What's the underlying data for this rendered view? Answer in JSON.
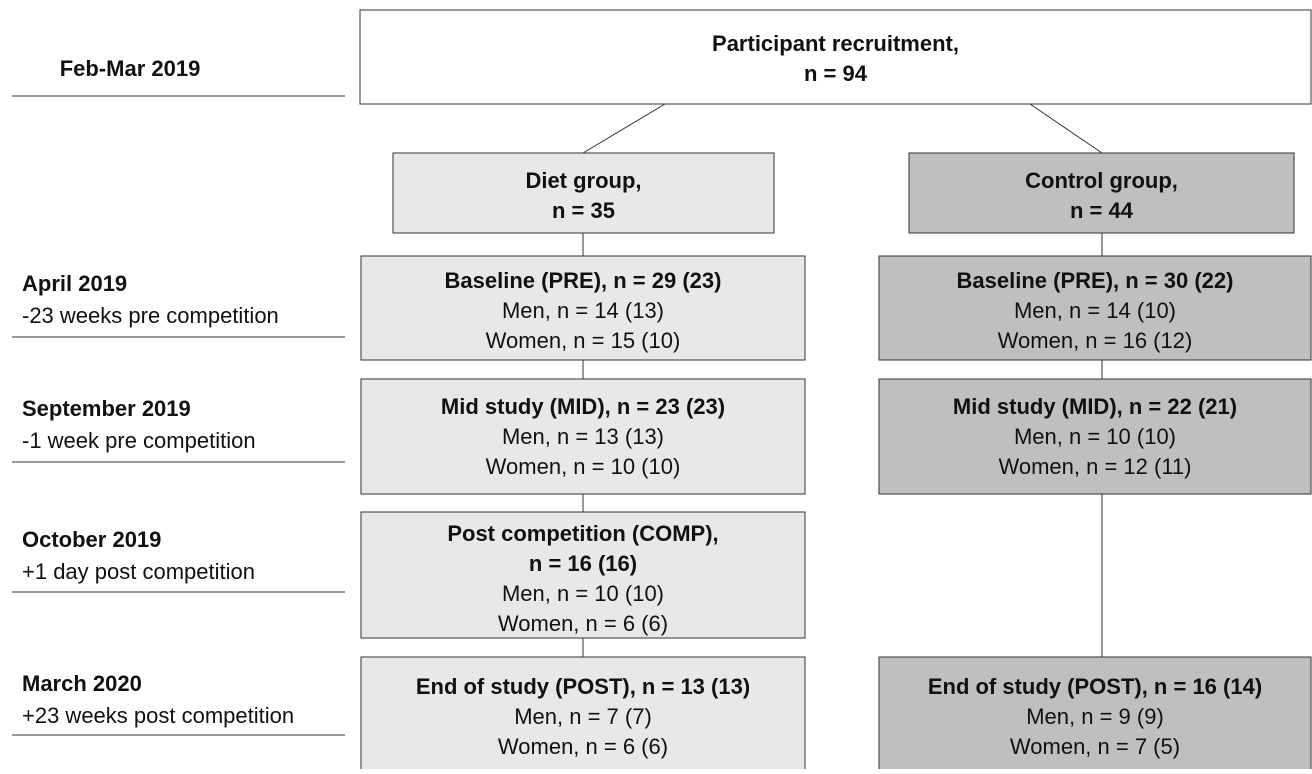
{
  "timeline": [
    {
      "label": "Feb-Mar 2019"
    },
    {
      "label": "April 2019",
      "detail": "-23 weeks pre competition"
    },
    {
      "label": "September 2019",
      "detail": "-1 week pre competition"
    },
    {
      "label": "October 2019",
      "detail": "+1 day post competition"
    },
    {
      "label": "March 2020",
      "detail": "+23 weeks post competition"
    }
  ],
  "recruitment": {
    "heading": [
      "Participant recruitment,",
      "n = 94"
    ]
  },
  "groups": [
    {
      "heading": [
        "Diet group,",
        "n = 35"
      ],
      "color": "#e8e8e8",
      "stages": [
        {
          "heading": [
            "Baseline (PRE), n = 29 (23)"
          ],
          "details": [
            "Men, n = 14 (13)",
            "Women, n = 15 (10)"
          ]
        },
        {
          "heading": [
            "Mid study (MID), n = 23 (23)"
          ],
          "details": [
            "Men, n = 13 (13)",
            "Women, n = 10 (10)"
          ]
        },
        {
          "heading": [
            "Post competition (COMP),",
            "n = 16 (16)"
          ],
          "details": [
            "Men, n = 10 (10)",
            "Women, n = 6 (6)"
          ]
        },
        {
          "heading": [
            "End of study (POST), n = 13 (13)"
          ],
          "details": [
            "Men, n = 7 (7)",
            "Women, n = 6 (6)"
          ]
        }
      ]
    },
    {
      "heading": [
        "Control group,",
        "n = 44"
      ],
      "color": "#bfbfbf",
      "stages": [
        {
          "heading": [
            "Baseline (PRE), n = 30 (22)"
          ],
          "details": [
            "Men, n = 14 (10)",
            "Women, n = 16 (12)"
          ]
        },
        {
          "heading": [
            "Mid study (MID), n = 22 (21)"
          ],
          "details": [
            "Men, n = 10 (10)",
            "Women, n = 12 (11)"
          ]
        },
        {
          "heading": [
            "End of study (POST), n = 16 (14)"
          ],
          "details": [
            "Men, n = 9 (9)",
            "Women, n = 7 (5)"
          ]
        }
      ]
    }
  ]
}
